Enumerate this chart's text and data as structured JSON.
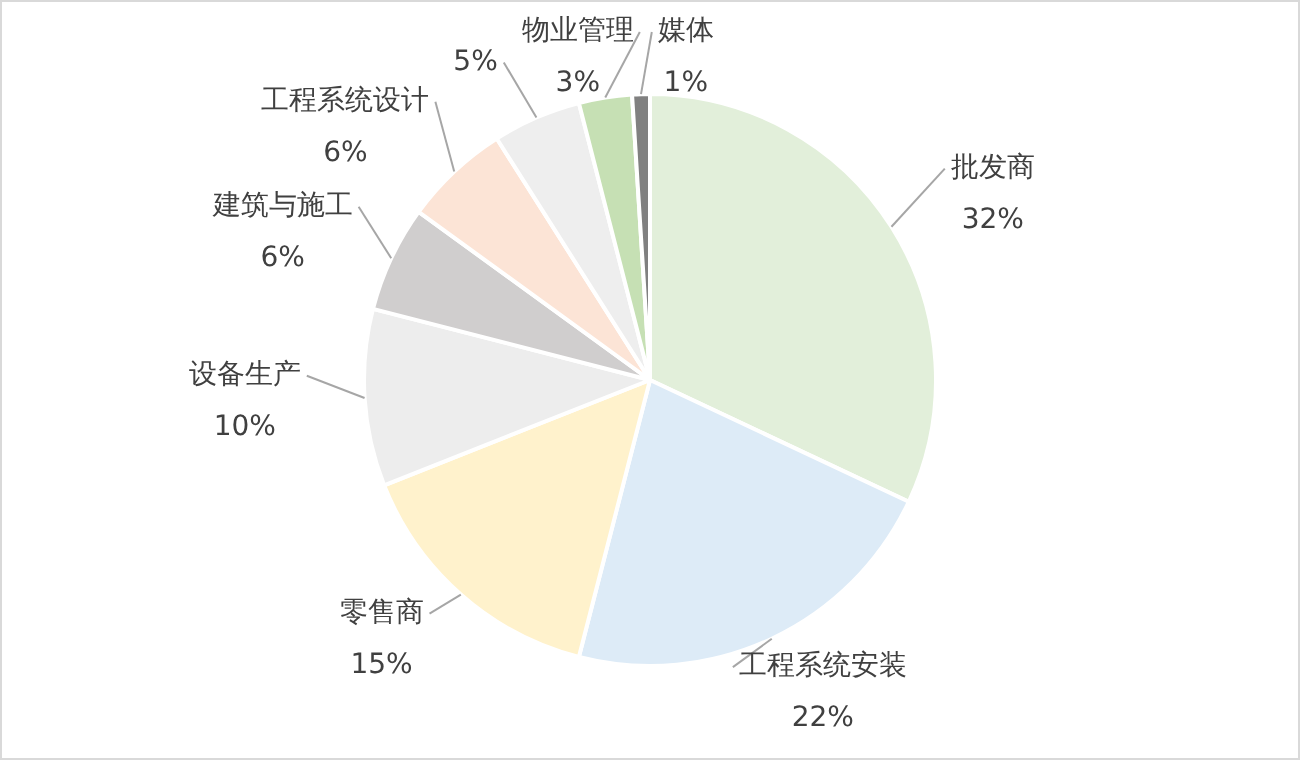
{
  "chart_data": {
    "type": "pie",
    "categories": [
      "批发商",
      "工程系统安装",
      "零售商",
      "设备生产",
      "建筑与施工",
      "工程系统设计",
      null,
      "物业管理",
      "媒体"
    ],
    "values": [
      32,
      22,
      15,
      10,
      6,
      6,
      5,
      3,
      1
    ],
    "colors": [
      "#e2efda",
      "#ddebf7",
      "#fff2cc",
      "#ededed",
      "#d0cece",
      "#fce4d6",
      "#eeeeee",
      "#c6e0b4",
      "#808080"
    ],
    "value_labels": [
      "32%",
      "22%",
      "15%",
      "10%",
      "6%",
      "6%",
      "5%",
      "3%",
      "1%"
    ],
    "legend": false
  }
}
